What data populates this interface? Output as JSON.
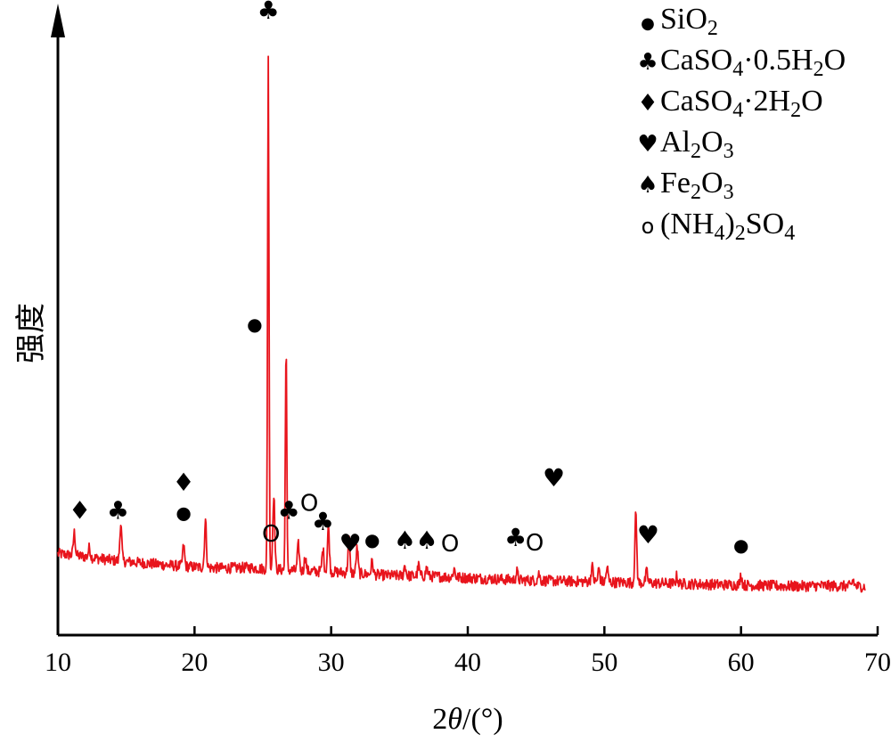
{
  "chart_data": {
    "type": "line",
    "xlabel_html": "2<tspan font-style=\"italic\">θ</tspan>/(°)",
    "xlabel": "2θ/(°)",
    "ylabel": "强度",
    "xlim": [
      10,
      70
    ],
    "ylim": [
      0,
      100
    ],
    "x_ticks": [
      10,
      20,
      30,
      40,
      50,
      60,
      70
    ],
    "y_ticks": [],
    "grid": false,
    "legend_position": "top-right",
    "colors": {
      "line": "#e8141c",
      "axis": "#000000",
      "marker": "#000000"
    },
    "series": [
      {
        "baseline": [
          [
            10,
            13.5
          ],
          [
            12,
            13.0
          ],
          [
            14,
            12.4
          ],
          [
            16,
            12.0
          ],
          [
            18,
            11.6
          ],
          [
            20,
            11.3
          ],
          [
            22,
            11.1
          ],
          [
            24,
            11.2
          ],
          [
            25,
            11.0
          ],
          [
            26,
            10.9
          ],
          [
            28,
            10.6
          ],
          [
            30,
            10.5
          ],
          [
            32,
            10.2
          ],
          [
            34,
            9.9
          ],
          [
            36,
            9.8
          ],
          [
            38,
            9.7
          ],
          [
            40,
            9.5
          ],
          [
            42,
            9.3
          ],
          [
            44,
            9.1
          ],
          [
            46,
            9.0
          ],
          [
            48,
            8.9
          ],
          [
            50,
            8.8
          ],
          [
            52,
            8.7
          ],
          [
            54,
            8.6
          ],
          [
            56,
            8.5
          ],
          [
            58,
            8.4
          ],
          [
            60,
            8.3
          ],
          [
            62,
            8.2
          ],
          [
            64,
            8.1
          ],
          [
            66,
            8.2
          ],
          [
            68,
            8.1
          ],
          [
            70,
            8.0
          ]
        ],
        "peaks": [
          [
            11.2,
            17.0
          ],
          [
            12.3,
            14.5
          ],
          [
            14.6,
            18.5
          ],
          [
            19.2,
            14.8
          ],
          [
            20.8,
            19.0
          ],
          [
            25.4,
            96.0
          ],
          [
            25.8,
            23.5
          ],
          [
            26.7,
            48.5
          ],
          [
            27.6,
            15.0
          ],
          [
            28.1,
            13.0
          ],
          [
            29.4,
            14.2
          ],
          [
            29.8,
            18.0
          ],
          [
            31.3,
            16.0
          ],
          [
            31.9,
            14.5
          ],
          [
            33.0,
            12.2
          ],
          [
            35.4,
            11.6
          ],
          [
            36.4,
            11.5
          ],
          [
            37.0,
            11.2
          ],
          [
            39.0,
            11.0
          ],
          [
            43.6,
            10.5
          ],
          [
            45.2,
            10.2
          ],
          [
            49.1,
            11.4
          ],
          [
            49.6,
            11.0
          ],
          [
            50.2,
            11.2
          ],
          [
            52.3,
            20.0
          ],
          [
            53.1,
            10.5
          ],
          [
            55.3,
            9.8
          ],
          [
            60.0,
            10.0
          ],
          [
            68.2,
            9.2
          ]
        ]
      }
    ],
    "phase_labels": [
      {
        "symbol": "♣",
        "x": 25.4,
        "y": 102.2
      },
      {
        "symbol": "●",
        "x": 24.4,
        "y": 50.5
      },
      {
        "symbol": "♦",
        "x": 11.6,
        "y": 19.3
      },
      {
        "symbol": "♣",
        "x": 14.4,
        "y": 19.3
      },
      {
        "symbol": "♦",
        "x": 19.2,
        "y": 23.9
      },
      {
        "symbol": "●",
        "x": 19.2,
        "y": 19.3
      },
      {
        "symbol": "○",
        "x": 25.6,
        "y": 15.5
      },
      {
        "symbol": "♣",
        "x": 26.9,
        "y": 19.3
      },
      {
        "symbol": "○",
        "x": 28.4,
        "y": 20.6
      },
      {
        "symbol": "♣",
        "x": 29.4,
        "y": 17.4
      },
      {
        "symbol": "♥",
        "x": 31.4,
        "y": 13.8
      },
      {
        "symbol": "●",
        "x": 33.0,
        "y": 14.8
      },
      {
        "symbol": "♠",
        "x": 35.4,
        "y": 14.3
      },
      {
        "symbol": "♠",
        "x": 37.0,
        "y": 14.3
      },
      {
        "symbol": "○",
        "x": 38.7,
        "y": 13.9
      },
      {
        "symbol": "♣",
        "x": 43.5,
        "y": 14.8
      },
      {
        "symbol": "○",
        "x": 44.9,
        "y": 14.0
      },
      {
        "symbol": "♥",
        "x": 46.3,
        "y": 24.7
      },
      {
        "symbol": "♥",
        "x": 53.2,
        "y": 15.2
      },
      {
        "symbol": "●",
        "x": 60.0,
        "y": 13.9
      }
    ],
    "legend": [
      {
        "symbol": "●",
        "formula_html": "SiO<tspan font-size=\"24\" dy=\"7\">2</tspan>",
        "text": "SiO2"
      },
      {
        "symbol": "♣",
        "formula_html": "CaSO<tspan font-size=\"24\" dy=\"7\">4</tspan><tspan dy=\"-7\">·0.5H</tspan><tspan font-size=\"24\" dy=\"7\">2</tspan><tspan dy=\"-7\">O</tspan>",
        "text": "CaSO4·0.5H2O"
      },
      {
        "symbol": "♦",
        "formula_html": "CaSO<tspan font-size=\"24\" dy=\"7\">4</tspan><tspan dy=\"-7\">·2H</tspan><tspan font-size=\"24\" dy=\"7\">2</tspan><tspan dy=\"-7\">O</tspan>",
        "text": "CaSO4·2H2O"
      },
      {
        "symbol": "♥",
        "formula_html": "Al<tspan font-size=\"24\" dy=\"7\">2</tspan><tspan dy=\"-7\">O</tspan><tspan font-size=\"24\" dy=\"7\">3</tspan>",
        "text": "Al2O3"
      },
      {
        "symbol": "♠",
        "formula_html": "Fe<tspan font-size=\"24\" dy=\"7\">2</tspan><tspan dy=\"-7\">O</tspan><tspan font-size=\"24\" dy=\"7\">3</tspan>",
        "text": "Fe2O3"
      },
      {
        "symbol": "○",
        "formula_html": "(NH<tspan font-size=\"24\" dy=\"7\">4</tspan><tspan dy=\"-7\">)</tspan><tspan font-size=\"24\" dy=\"7\">2</tspan><tspan dy=\"-7\">SO</tspan><tspan font-size=\"24\" dy=\"7\">4</tspan>",
        "text": "(NH4)2SO4"
      }
    ]
  }
}
